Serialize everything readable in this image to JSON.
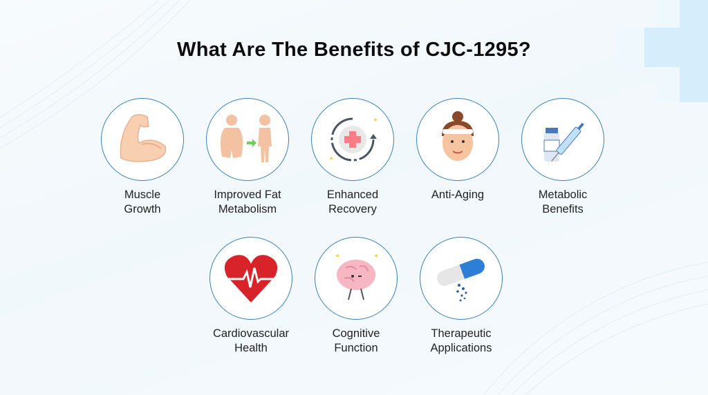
{
  "title": "What Are The Benefits of CJC-1295?",
  "colors": {
    "circle_border": "#3a7fb6",
    "deco": "#d6eefb",
    "title": "#0d0d0d"
  },
  "benefits": [
    {
      "line1": "Muscle",
      "line2": "Growth",
      "icon": "flexed-bicep-icon"
    },
    {
      "line1": "Improved Fat",
      "line2": "Metabolism",
      "icon": "weight-loss-figures-icon"
    },
    {
      "line1": "Enhanced",
      "line2": "Recovery",
      "icon": "medical-cross-cycle-icon"
    },
    {
      "line1": "Anti-Aging",
      "line2": "",
      "icon": "woman-face-icon"
    },
    {
      "line1": "Metabolic",
      "line2": "Benefits",
      "icon": "syringe-vial-icon"
    },
    {
      "line1": "Cardiovascular",
      "line2": "Health",
      "icon": "heart-pulse-icon"
    },
    {
      "line1": "Cognitive",
      "line2": "Function",
      "icon": "brain-icon"
    },
    {
      "line1": "Therapeutic",
      "line2": "Applications",
      "icon": "capsule-icon"
    }
  ]
}
